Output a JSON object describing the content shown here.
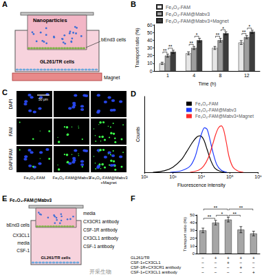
{
  "panel_labels": [
    "A",
    "B",
    "C",
    "D",
    "E",
    "F"
  ],
  "diagram_a": {
    "nanoparticles": "Nanoparticles",
    "upper_cells": "bEnd3 cells",
    "lower_cells": "GL261/TR cells",
    "magnet": "Magnet"
  },
  "chart_data": [
    {
      "type": "bar",
      "x_label": "Time (h)",
      "y_label": "Transport ratio (%)",
      "categories": [
        "1",
        "4",
        "8",
        "12"
      ],
      "series": [
        {
          "name": "Fe₃O₄-FAM",
          "color": "#e6e6e6",
          "values": [
            10,
            23,
            30,
            37
          ],
          "errors": [
            1.5,
            2,
            2,
            2.5
          ]
        },
        {
          "name": "Fe₃O₄-FAM@Mabv3",
          "color": "#9e9e9e",
          "values": [
            20,
            30,
            40,
            44
          ],
          "errors": [
            2,
            2,
            2.5,
            2
          ]
        },
        {
          "name": "Fe₃O₄-FAM@Mabv3+Magnet",
          "color": "#3c3c3c",
          "values": [
            25,
            40,
            49,
            51
          ],
          "errors": [
            2,
            2.5,
            2,
            2
          ]
        }
      ],
      "ylim": [
        0,
        60
      ],
      "yticks": [
        0,
        10,
        20,
        30,
        40,
        50,
        60
      ],
      "grid": false,
      "legend": "top-left",
      "significance": [
        {
          "category": "1",
          "between": [
            0,
            1
          ],
          "label": "**"
        },
        {
          "category": "1",
          "between": [
            1,
            2
          ],
          "label": "**"
        },
        {
          "category": "4",
          "between": [
            0,
            1
          ],
          "label": "**"
        },
        {
          "category": "4",
          "between": [
            1,
            2
          ],
          "label": "*"
        },
        {
          "category": "8",
          "between": [
            0,
            1
          ],
          "label": "**"
        },
        {
          "category": "8",
          "between": [
            1,
            2
          ],
          "label": "*"
        },
        {
          "category": "12",
          "between": [
            0,
            1
          ],
          "label": "**"
        },
        {
          "category": "12",
          "between": [
            1,
            2
          ],
          "label": "*"
        }
      ]
    },
    {
      "type": "line",
      "x_label": "Fluorescence intensity",
      "y_label": "Counts",
      "log": "x",
      "series": [
        {
          "name": "Fe₃O₄-FAM",
          "color": "#000000",
          "x": [
            200,
            500,
            1000,
            2000,
            3000,
            5000,
            7000,
            9000,
            12000,
            16000,
            22000,
            30000,
            45000,
            70000
          ],
          "values": [
            0,
            3,
            10,
            25,
            40,
            60,
            70,
            72,
            65,
            45,
            22,
            8,
            2,
            0
          ]
        },
        {
          "name": "Fe₃O₄-FAM@Mabv3",
          "color": "#1f3dff",
          "x": [
            800,
            2000,
            4000,
            6000,
            8000,
            10000,
            13000,
            16000,
            20000,
            26000,
            35000,
            50000,
            80000
          ],
          "values": [
            0,
            3,
            12,
            30,
            55,
            75,
            88,
            85,
            65,
            38,
            15,
            4,
            0
          ]
        },
        {
          "name": "Fe₃O₄-FAM@Mabv3+Magnet",
          "color": "#ff2a2a",
          "x": [
            4000,
            8000,
            12000,
            18000,
            25000,
            32000,
            40000,
            50000,
            60000,
            75000,
            95000,
            130000,
            200000,
            300000
          ],
          "values": [
            0,
            4,
            12,
            30,
            55,
            75,
            88,
            92,
            85,
            60,
            30,
            10,
            2,
            0
          ]
        }
      ],
      "xlim": [
        100,
        1000000
      ],
      "xticks": [
        {
          "value": 100,
          "label": "10²"
        },
        {
          "value": 1000,
          "label": "10³"
        },
        {
          "value": 10000,
          "label": "10⁴"
        },
        {
          "value": 100000,
          "label": "10⁵"
        },
        {
          "value": 1000000,
          "label": "10⁶"
        }
      ],
      "ylim": [
        0,
        150
      ],
      "tick_labels": "x",
      "grid": false,
      "legend": "top-right"
    },
    {
      "type": "bar",
      "y_label": "Transport ratio (%)",
      "color": "#a6a6a6",
      "values": [
        30,
        40,
        44,
        31,
        26
      ],
      "errors": [
        3,
        3,
        3,
        4,
        3
      ],
      "ylim": [
        0,
        50
      ],
      "yticks": [
        0,
        10,
        20,
        30,
        40,
        50
      ],
      "grid": false,
      "table": {
        "rows": [
          {
            "label": "GL261/TR",
            "cells": [
              "−",
              "+",
              "+",
              "+",
              "+"
            ]
          },
          {
            "label": "CSF-1+CX3CL1",
            "cells": [
              "−",
              "−",
              "+",
              "−",
              "−"
            ]
          },
          {
            "label": "CSF-1R+CX3CR1 antibody",
            "cells": [
              "−",
              "−",
              "−",
              "+",
              "−"
            ]
          },
          {
            "label": "CSF-1+CX3CL1 antibody",
            "cells": [
              "−",
              "−",
              "−",
              "−",
              "+"
            ]
          }
        ]
      },
      "significance": [
        {
          "between": [
            0,
            1
          ],
          "label": "**"
        },
        {
          "between": [
            1,
            2
          ],
          "label": "*"
        },
        {
          "between": [
            0,
            2
          ],
          "label": "**"
        },
        {
          "between": [
            2,
            3
          ],
          "label": "**"
        },
        {
          "between": [
            2,
            4
          ],
          "label": "**"
        }
      ]
    }
  ],
  "panel_c": {
    "rows": [
      "DAPI",
      "FAM",
      "DAPI/FAM"
    ],
    "columns": [
      [
        "Fe₃O₄-FAM"
      ],
      [
        "Fe₃O₄-FAM@Mabv3"
      ],
      [
        "Fe₃O₄-FAM@Mabv3",
        "+Magnet"
      ]
    ],
    "scale_bar": "50 μm"
  },
  "diagram_e": {
    "particles": "Fe₃O₄-FAM@Mabv3",
    "left_labels": [
      "bEnd3 cells",
      "CX3CL1",
      "media",
      "CSF-1"
    ],
    "right_labels": [
      "media",
      "CX3CR1 antibody",
      "CSF-1R antibody",
      "CX3CL1 antibody",
      "CSF-1 antibody"
    ],
    "lower_cells": "GL261/TR cells"
  },
  "watermark": "开采生物"
}
